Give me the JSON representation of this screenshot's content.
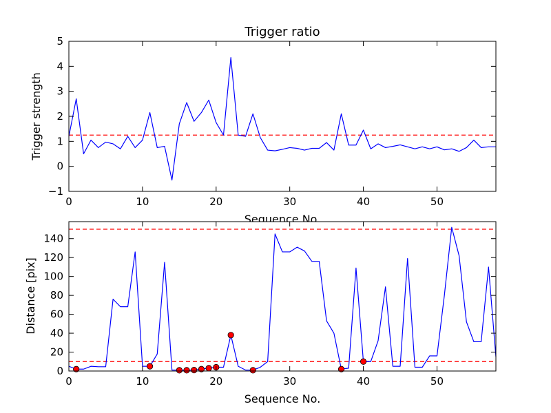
{
  "chart_data": [
    {
      "type": "line",
      "title": "Trigger ratio",
      "xlabel": "Sequence No.",
      "ylabel": "Trigger strength",
      "xlim": [
        0,
        58
      ],
      "ylim": [
        -1,
        5
      ],
      "xticks": [
        0,
        10,
        20,
        30,
        40,
        50
      ],
      "yticks": [
        -1,
        0,
        1,
        2,
        3,
        4,
        5
      ],
      "grid": false,
      "threshold_lines": [
        {
          "y": 1.25,
          "color": "#ff0000",
          "style": "dashed"
        }
      ],
      "series": [
        {
          "color": "#0000ff",
          "x": [
            0,
            1,
            2,
            3,
            4,
            5,
            6,
            7,
            8,
            9,
            10,
            11,
            12,
            13,
            14,
            15,
            16,
            17,
            18,
            19,
            20,
            21,
            22,
            23,
            24,
            25,
            26,
            27,
            28,
            29,
            30,
            31,
            32,
            33,
            34,
            35,
            36,
            37,
            38,
            39,
            40,
            41,
            42,
            43,
            44,
            45,
            46,
            47,
            48,
            49,
            50,
            51,
            52,
            53,
            54,
            55,
            56,
            57,
            58
          ],
          "y": [
            1.2,
            2.7,
            0.5,
            1.05,
            0.75,
            0.97,
            0.9,
            0.7,
            1.2,
            0.75,
            1.05,
            2.15,
            0.75,
            0.8,
            -0.55,
            1.7,
            2.55,
            1.8,
            2.15,
            2.65,
            1.75,
            1.25,
            4.35,
            1.25,
            1.2,
            2.1,
            1.15,
            0.65,
            0.62,
            0.68,
            0.75,
            0.72,
            0.65,
            0.72,
            0.72,
            0.95,
            0.65,
            2.1,
            0.85,
            0.85,
            1.45,
            0.7,
            0.9,
            0.75,
            0.8,
            0.86,
            0.78,
            0.7,
            0.78,
            0.7,
            0.78,
            0.66,
            0.7,
            0.6,
            0.75,
            1.05,
            0.75,
            0.78,
            0.78
          ]
        }
      ]
    },
    {
      "type": "line",
      "title": "",
      "xlabel": "Sequence No.",
      "ylabel": "Distance [pix]",
      "xlim": [
        0,
        58
      ],
      "ylim": [
        0,
        158
      ],
      "xticks": [
        0,
        10,
        20,
        30,
        40,
        50
      ],
      "yticks": [
        0,
        20,
        40,
        60,
        80,
        100,
        120,
        140
      ],
      "grid": false,
      "threshold_lines": [
        {
          "y": 150,
          "color": "#ff0000",
          "style": "dashed"
        },
        {
          "y": 10,
          "color": "#ff0000",
          "style": "dashed"
        }
      ],
      "series": [
        {
          "color": "#0000ff",
          "x": [
            0,
            1,
            2,
            3,
            4,
            5,
            6,
            7,
            8,
            9,
            10,
            11,
            12,
            13,
            14,
            15,
            16,
            17,
            18,
            19,
            20,
            21,
            22,
            23,
            24,
            25,
            26,
            27,
            28,
            29,
            30,
            31,
            32,
            33,
            34,
            35,
            36,
            37,
            38,
            39,
            40,
            41,
            42,
            43,
            44,
            45,
            46,
            47,
            48,
            49,
            50,
            51,
            52,
            53,
            54,
            55,
            56,
            57,
            58
          ],
          "y": [
            5,
            2,
            2,
            5,
            4.5,
            4.5,
            76,
            68,
            68,
            126,
            5,
            5,
            18,
            115,
            1,
            1,
            1,
            1,
            2,
            3,
            4,
            4,
            38,
            5,
            1,
            1,
            4,
            10,
            145,
            126,
            126,
            131,
            127,
            116,
            116,
            53,
            40,
            2,
            3,
            109,
            10,
            10,
            32,
            89,
            5,
            5,
            119,
            4,
            4,
            16,
            16,
            80,
            152,
            122,
            52,
            31,
            31,
            110,
            15
          ]
        }
      ],
      "markers": {
        "color": "#ff0000",
        "points": [
          {
            "x": 1,
            "y": 2
          },
          {
            "x": 11,
            "y": 5
          },
          {
            "x": 15,
            "y": 0.8
          },
          {
            "x": 16,
            "y": 0.8
          },
          {
            "x": 17,
            "y": 1
          },
          {
            "x": 18,
            "y": 2
          },
          {
            "x": 19,
            "y": 3
          },
          {
            "x": 20,
            "y": 4
          },
          {
            "x": 22,
            "y": 38
          },
          {
            "x": 25,
            "y": 0.8
          },
          {
            "x": 37,
            "y": 2
          },
          {
            "x": 40,
            "y": 10
          }
        ]
      }
    }
  ]
}
